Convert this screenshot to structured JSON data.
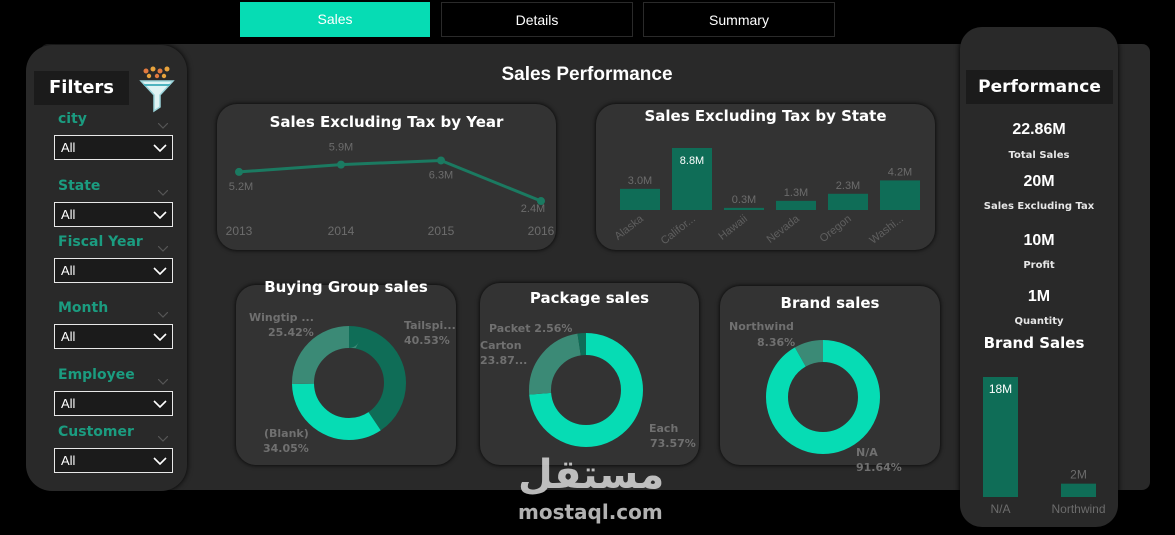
{
  "tabs": [
    {
      "label": "Sales",
      "active": true
    },
    {
      "label": "Details",
      "active": false
    },
    {
      "label": "Summary",
      "active": false
    }
  ],
  "page_title": "Sales Performance",
  "filters": {
    "title": "Filters",
    "items": [
      {
        "label": "city",
        "value": "All"
      },
      {
        "label": "State",
        "value": "All"
      },
      {
        "label": "Fiscal Year",
        "value": "All"
      },
      {
        "label": "Month",
        "value": "All"
      },
      {
        "label": "Employee",
        "value": "All"
      },
      {
        "label": "Customer",
        "value": "All"
      }
    ]
  },
  "performance": {
    "title": "Performance",
    "kpis": [
      {
        "value": "22.86M",
        "label": "Total Sales"
      },
      {
        "value": "20M",
        "label": "Sales Excluding  Tax"
      },
      {
        "value": "10M",
        "label": "Profit"
      },
      {
        "value": "1M",
        "label": "Quantity"
      }
    ],
    "brand_title": "Brand Sales"
  },
  "colors": {
    "accent": "#06dcb4",
    "dark_green": "#0f6d57",
    "mid_green": "#3b8a76",
    "card": "#333333",
    "panel": "#292929"
  },
  "chart_data": [
    {
      "type": "line",
      "title": "Sales Excluding Tax by Year",
      "categories": [
        "2013",
        "2014",
        "2015",
        "2016"
      ],
      "values": [
        5.2,
        5.9,
        6.3,
        2.4
      ],
      "data_labels": [
        "5.2M",
        "5.9M",
        "6.3M",
        "2.4M"
      ],
      "ylim": [
        0,
        7
      ]
    },
    {
      "type": "bar",
      "title": "Sales Excluding Tax by State",
      "categories": [
        "Alaska",
        "Califor...",
        "Hawaii",
        "Nevada",
        "Oregon",
        "Washi..."
      ],
      "values": [
        3.0,
        8.8,
        0.3,
        1.3,
        2.3,
        4.2
      ],
      "data_labels": [
        "3.0M",
        "8.8M",
        "0.3M",
        "1.3M",
        "2.3M",
        "4.2M"
      ],
      "ylim": [
        0,
        8.8
      ]
    },
    {
      "type": "pie",
      "title": "Buying Group sales",
      "slices": [
        {
          "label": "Tailspi...",
          "pct_label": "40.53%",
          "value": 40.53,
          "color": "#0f6d57"
        },
        {
          "label": "(Blank)",
          "pct_label": "34.05%",
          "value": 34.05,
          "color": "#06dcb4"
        },
        {
          "label": "Wingtip ...",
          "pct_label": "25.42%",
          "value": 25.42,
          "color": "#3b8a76"
        }
      ]
    },
    {
      "type": "pie",
      "title": "Package sales",
      "slices": [
        {
          "label": "Each",
          "pct_label": "73.57%",
          "value": 73.57,
          "color": "#06dcb4"
        },
        {
          "label": "Carton",
          "pct_label": "23.87...",
          "value": 23.87,
          "color": "#3b8a76"
        },
        {
          "label": "Packet",
          "pct_label": "2.56%",
          "value": 2.56,
          "color": "#0f6d57"
        }
      ]
    },
    {
      "type": "pie",
      "title": "Brand sales",
      "slices": [
        {
          "label": "N/A",
          "pct_label": "91.64%",
          "value": 91.64,
          "color": "#06dcb4"
        },
        {
          "label": "Northwind",
          "pct_label": "8.36%",
          "value": 8.36,
          "color": "#3b8a76"
        }
      ]
    },
    {
      "type": "bar",
      "title": "Brand Sales",
      "categories": [
        "N/A",
        "Northwind"
      ],
      "values": [
        18,
        2
      ],
      "data_labels": [
        "18M",
        "2M"
      ],
      "ylim": [
        0,
        18
      ]
    }
  ],
  "watermark": {
    "arabic": "مستقل",
    "latin": "mostaql.com"
  }
}
